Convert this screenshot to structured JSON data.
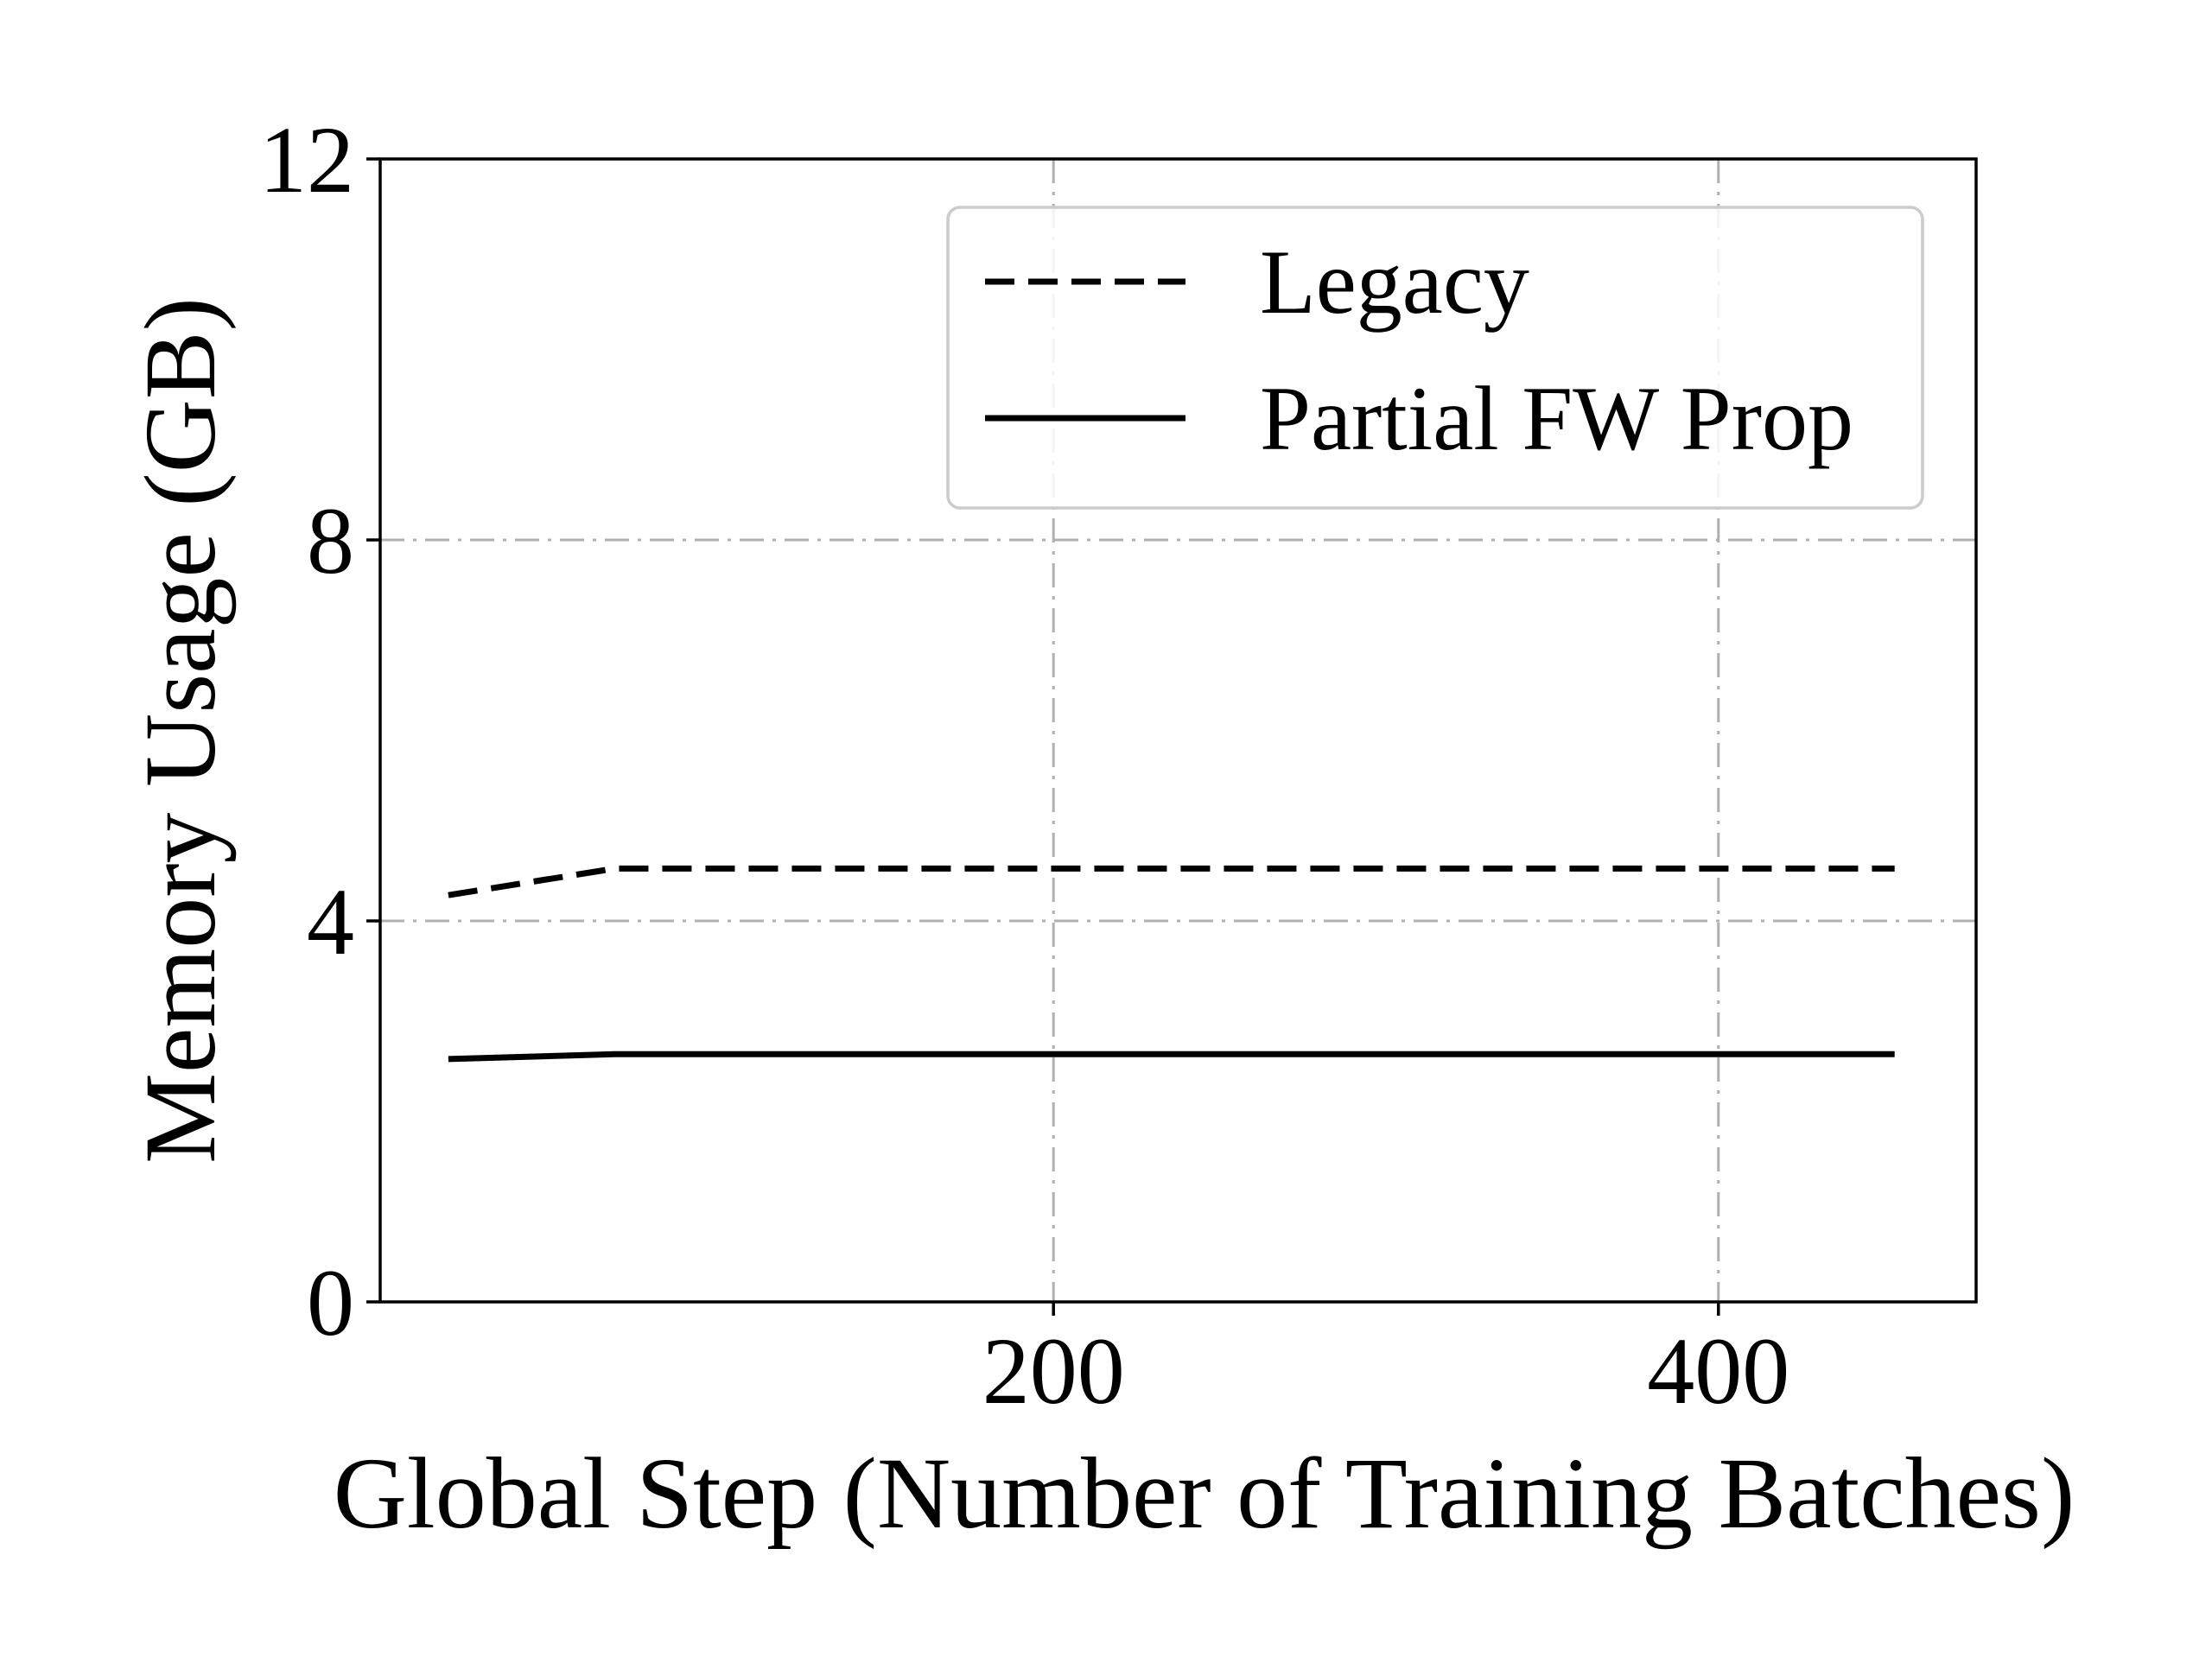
{
  "chart_data": {
    "type": "line",
    "title": "",
    "xlabel": "Global Step (Number of Training Batches)",
    "ylabel": "Memory Usage (GB)",
    "xlim": [
      -2.5,
      477.5
    ],
    "ylim": [
      0,
      12
    ],
    "xticks": [
      200,
      400
    ],
    "yticks": [
      0,
      4,
      8,
      12
    ],
    "grid": true,
    "grid_style": "dash-dot",
    "legend_position": "top-right",
    "series": [
      {
        "name": "Legacy",
        "line_style": "dashed",
        "color": "#000000",
        "x": [
          18,
          68,
          118,
          168,
          218,
          268,
          318,
          368,
          418,
          453
        ],
        "y": [
          4.27,
          4.55,
          4.55,
          4.55,
          4.55,
          4.55,
          4.55,
          4.55,
          4.55,
          4.55
        ]
      },
      {
        "name": "Partial FW Prop",
        "line_style": "solid",
        "color": "#000000",
        "x": [
          18,
          68,
          118,
          168,
          218,
          268,
          318,
          368,
          418,
          453
        ],
        "y": [
          2.55,
          2.6,
          2.6,
          2.6,
          2.6,
          2.6,
          2.6,
          2.6,
          2.6,
          2.6
        ]
      }
    ]
  },
  "colors": {
    "grid": "#b0b0b0",
    "axes": "#000000",
    "legend_border": "#cccccc"
  }
}
